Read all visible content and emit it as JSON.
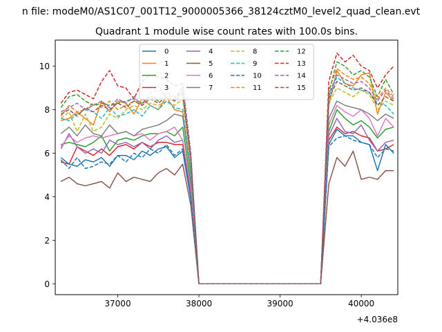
{
  "chart_data": {
    "type": "line",
    "suptitle": "n file: modeM0/AS1C07_001T12_9000005366_38124cztM0_level2_quad_clean.evt",
    "title": "Quadrant 1 module wise count rates with 100.0s bins.",
    "xlabel": "",
    "ylabel": "",
    "x_offset_label": "+4.036e8",
    "x_offset": 403600000,
    "xlim": [
      36230,
      40450
    ],
    "ylim": [
      -0.5,
      11.2
    ],
    "xticks": [
      37000,
      38000,
      39000,
      40000
    ],
    "xtick_labels": [
      "37000",
      "38000",
      "39000",
      "40000"
    ],
    "yticks": [
      0,
      2,
      4,
      6,
      8,
      10
    ],
    "ytick_labels": [
      "0",
      "2",
      "4",
      "6",
      "8",
      "10"
    ],
    "grid": false,
    "legend_placement": "top-center",
    "legend_columns": 4,
    "x": [
      36300,
      36400,
      36500,
      36600,
      36700,
      36800,
      36900,
      37000,
      37100,
      37200,
      37300,
      37400,
      37500,
      37600,
      37700,
      37800,
      37900,
      38000,
      38100,
      38200,
      38300,
      38400,
      38500,
      38600,
      38700,
      38800,
      38900,
      39000,
      39100,
      39200,
      39300,
      39400,
      39500,
      39600,
      39700,
      39800,
      39900,
      40000,
      40100,
      40200,
      40300,
      40400
    ],
    "series": [
      {
        "name": "0",
        "color": "#1f77b4",
        "dash": "solid",
        "values": [
          5.8,
          5.5,
          5.4,
          5.7,
          5.6,
          5.8,
          5.4,
          5.9,
          5.9,
          5.7,
          6.1,
          5.9,
          6.2,
          6.3,
          5.8,
          6.1,
          3.9,
          0,
          0,
          0,
          0,
          0,
          0,
          0,
          0,
          0,
          0,
          0,
          0,
          0,
          0,
          0,
          0,
          6.4,
          7.1,
          6.8,
          6.8,
          6.5,
          6.4,
          5.2,
          6.4,
          6.0
        ]
      },
      {
        "name": "1",
        "color": "#ff7f0e",
        "dash": "solid",
        "values": [
          7.5,
          7.6,
          7.9,
          7.6,
          7.3,
          8.4,
          7.9,
          8.4,
          8.3,
          7.8,
          8.5,
          8.2,
          8.0,
          8.6,
          8.0,
          7.9,
          5.1,
          0,
          0,
          0,
          0,
          0,
          0,
          0,
          0,
          0,
          0,
          0,
          0,
          0,
          0,
          0,
          0,
          8.2,
          9.8,
          9.2,
          9.1,
          9.6,
          9.7,
          7.8,
          8.8,
          8.4
        ]
      },
      {
        "name": "2",
        "color": "#2ca02c",
        "dash": "solid",
        "values": [
          6.4,
          6.5,
          6.4,
          6.3,
          6.5,
          6.8,
          6.1,
          6.6,
          6.7,
          6.6,
          6.8,
          6.9,
          6.9,
          7.0,
          6.8,
          7.2,
          4.6,
          0,
          0,
          0,
          0,
          0,
          0,
          0,
          0,
          0,
          0,
          0,
          0,
          0,
          0,
          0,
          0,
          7.0,
          8.0,
          7.6,
          7.3,
          7.5,
          7.2,
          6.7,
          7.1,
          7.2
        ]
      },
      {
        "name": "3",
        "color": "#d62728",
        "dash": "solid",
        "values": [
          5.6,
          5.5,
          6.3,
          6.1,
          5.9,
          6.2,
          5.9,
          6.3,
          6.4,
          6.2,
          6.5,
          6.3,
          6.5,
          6.5,
          6.4,
          6.4,
          4.2,
          0,
          0,
          0,
          0,
          0,
          0,
          0,
          0,
          0,
          0,
          0,
          0,
          0,
          0,
          0,
          0,
          6.6,
          7.2,
          6.9,
          7.0,
          6.8,
          6.7,
          6.1,
          6.2,
          6.4
        ]
      },
      {
        "name": "4",
        "color": "#9467bd",
        "dash": "solid",
        "values": [
          6.2,
          6.9,
          6.3,
          6.0,
          6.2,
          6.0,
          6.6,
          6.4,
          6.5,
          6.3,
          6.5,
          6.2,
          6.6,
          6.8,
          6.5,
          6.6,
          4.3,
          0,
          0,
          0,
          0,
          0,
          0,
          0,
          0,
          0,
          0,
          0,
          0,
          0,
          0,
          0,
          0,
          6.8,
          7.6,
          7.0,
          6.9,
          7.3,
          6.6,
          6.1,
          6.5,
          6.6
        ]
      },
      {
        "name": "5",
        "color": "#8c564b",
        "dash": "solid",
        "values": [
          4.7,
          4.9,
          4.6,
          4.5,
          4.6,
          4.7,
          4.4,
          5.1,
          4.7,
          4.9,
          4.8,
          4.7,
          5.1,
          5.3,
          5.0,
          5.5,
          3.6,
          0,
          0,
          0,
          0,
          0,
          0,
          0,
          0,
          0,
          0,
          0,
          0,
          0,
          0,
          0,
          0,
          4.6,
          5.8,
          5.4,
          6.1,
          4.8,
          4.9,
          4.8,
          5.2,
          5.2
        ]
      },
      {
        "name": "6",
        "color": "#e377c2",
        "dash": "solid",
        "values": [
          6.3,
          6.8,
          6.5,
          6.7,
          6.8,
          6.7,
          6.8,
          6.9,
          7.0,
          6.8,
          6.9,
          6.6,
          6.9,
          7.0,
          7.2,
          6.6,
          4.4,
          0,
          0,
          0,
          0,
          0,
          0,
          0,
          0,
          0,
          0,
          0,
          0,
          0,
          0,
          0,
          0,
          7.3,
          8.2,
          7.9,
          7.7,
          8.0,
          7.6,
          6.8,
          7.6,
          7.2
        ]
      },
      {
        "name": "7",
        "color": "#7f7f7f",
        "dash": "solid",
        "values": [
          6.9,
          7.2,
          6.8,
          7.3,
          6.9,
          6.8,
          7.3,
          6.9,
          7.0,
          6.8,
          7.1,
          7.2,
          7.3,
          7.5,
          7.8,
          7.7,
          5.0,
          0,
          0,
          0,
          0,
          0,
          0,
          0,
          0,
          0,
          0,
          0,
          0,
          0,
          0,
          0,
          0,
          7.6,
          8.4,
          8.2,
          8.1,
          8.0,
          7.8,
          7.5,
          7.8,
          7.6
        ]
      },
      {
        "name": "8",
        "color": "#bcbd22",
        "dash": "dashed",
        "values": [
          7.6,
          7.9,
          7.0,
          7.8,
          7.0,
          7.2,
          7.8,
          7.6,
          8.0,
          8.2,
          8.0,
          8.3,
          8.2,
          8.4,
          8.2,
          8.5,
          5.5,
          0,
          0,
          0,
          0,
          0,
          0,
          0,
          0,
          0,
          0,
          0,
          0,
          0,
          0,
          0,
          0,
          8.3,
          9.0,
          8.8,
          8.6,
          8.9,
          8.7,
          8.0,
          8.4,
          8.2
        ]
      },
      {
        "name": "9",
        "color": "#17becf",
        "dash": "dashed",
        "values": [
          7.6,
          7.5,
          7.8,
          8.0,
          7.9,
          7.6,
          8.1,
          7.7,
          7.8,
          8.0,
          7.7,
          8.2,
          8.0,
          8.4,
          8.1,
          8.0,
          5.2,
          0,
          0,
          0,
          0,
          0,
          0,
          0,
          0,
          0,
          0,
          0,
          0,
          0,
          0,
          0,
          0,
          8.6,
          9.5,
          9.2,
          9.0,
          8.9,
          8.8,
          8.3,
          8.2,
          7.8
        ]
      },
      {
        "name": "10",
        "color": "#1f77b4",
        "dash": "dashed",
        "values": [
          5.7,
          5.3,
          5.8,
          5.3,
          5.4,
          5.6,
          5.5,
          5.9,
          5.6,
          6.0,
          5.8,
          6.2,
          6.0,
          6.4,
          5.9,
          6.2,
          4.0,
          0,
          0,
          0,
          0,
          0,
          0,
          0,
          0,
          0,
          0,
          0,
          0,
          0,
          0,
          0,
          0,
          6.3,
          6.7,
          6.8,
          6.6,
          6.5,
          6.4,
          5.8,
          6.2,
          6.1
        ]
      },
      {
        "name": "11",
        "color": "#ff7f0e",
        "dash": "dashed",
        "values": [
          7.7,
          8.2,
          7.9,
          8.0,
          8.3,
          8.1,
          8.4,
          8.0,
          8.2,
          8.4,
          8.3,
          8.6,
          8.5,
          8.8,
          8.6,
          8.7,
          5.6,
          0,
          0,
          0,
          0,
          0,
          0,
          0,
          0,
          0,
          0,
          0,
          0,
          0,
          0,
          0,
          0,
          8.9,
          9.9,
          9.6,
          9.4,
          9.5,
          9.2,
          8.5,
          9.0,
          8.6
        ]
      },
      {
        "name": "12",
        "color": "#2ca02c",
        "dash": "dashed",
        "values": [
          8.1,
          8.6,
          8.7,
          8.4,
          8.2,
          8.3,
          8.2,
          8.3,
          8.4,
          8.5,
          8.3,
          8.6,
          8.4,
          8.7,
          8.5,
          8.9,
          5.8,
          0,
          0,
          0,
          0,
          0,
          0,
          0,
          0,
          0,
          0,
          0,
          0,
          0,
          0,
          0,
          0,
          8.8,
          10.2,
          10.0,
          9.6,
          9.8,
          9.5,
          8.6,
          9.4,
          8.7
        ]
      },
      {
        "name": "13",
        "color": "#d62728",
        "dash": "dashed",
        "values": [
          8.3,
          8.8,
          8.9,
          8.7,
          8.5,
          9.3,
          9.8,
          9.1,
          9.0,
          8.5,
          9.3,
          9.6,
          9.5,
          9.4,
          9.1,
          9.2,
          6.0,
          0,
          0,
          0,
          0,
          0,
          0,
          0,
          0,
          0,
          0,
          0,
          0,
          0,
          0,
          0,
          0,
          9.3,
          10.6,
          10.2,
          10.5,
          10.0,
          9.8,
          9.0,
          9.6,
          10.0
        ]
      },
      {
        "name": "14",
        "color": "#9467bd",
        "dash": "dashed",
        "values": [
          7.9,
          8.1,
          8.3,
          8.0,
          8.2,
          8.4,
          8.1,
          8.5,
          8.3,
          8.6,
          8.2,
          8.8,
          8.9,
          8.7,
          8.5,
          9.1,
          5.9,
          0,
          0,
          0,
          0,
          0,
          0,
          0,
          0,
          0,
          0,
          0,
          0,
          0,
          0,
          0,
          0,
          8.7,
          9.6,
          9.4,
          9.2,
          9.3,
          9.0,
          8.4,
          8.9,
          8.5
        ]
      },
      {
        "name": "15",
        "color": "#8c564b",
        "dash": "dashed",
        "values": [
          7.8,
          8.0,
          7.7,
          8.1,
          7.9,
          8.2,
          8.0,
          8.3,
          8.1,
          8.4,
          8.2,
          8.5,
          8.3,
          8.6,
          8.4,
          8.8,
          5.7,
          0,
          0,
          0,
          0,
          0,
          0,
          0,
          0,
          0,
          0,
          0,
          0,
          0,
          0,
          0,
          0,
          8.5,
          9.3,
          9.1,
          8.9,
          9.0,
          8.8,
          8.2,
          8.6,
          8.4
        ]
      }
    ]
  }
}
